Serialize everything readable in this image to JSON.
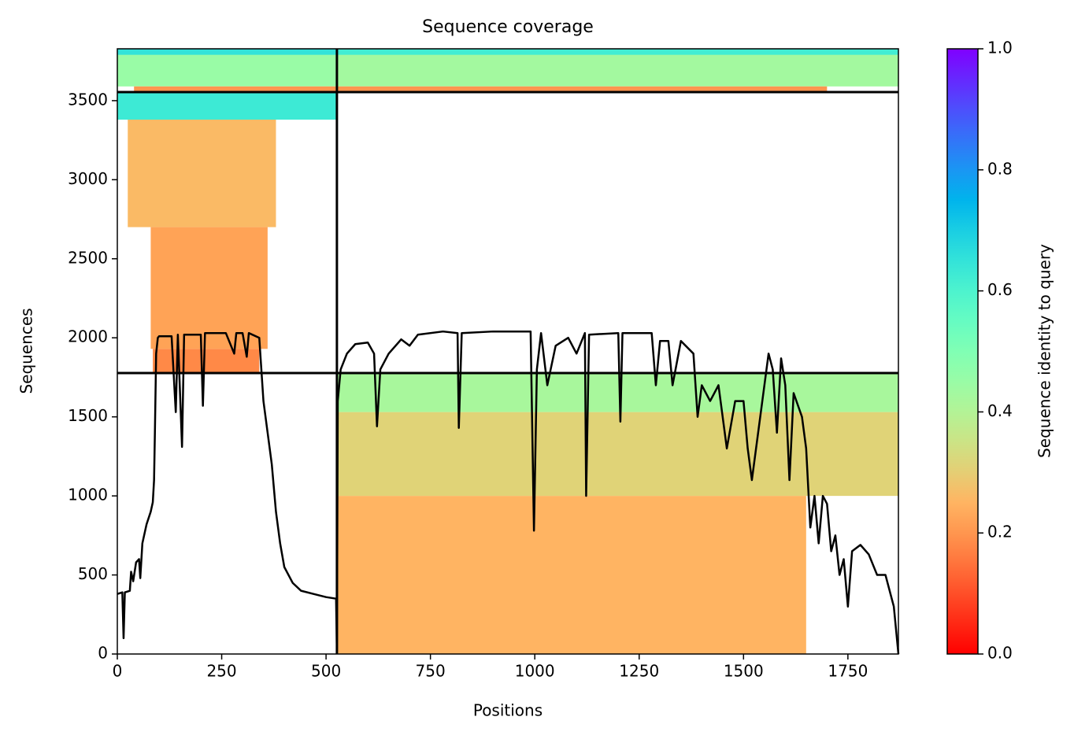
{
  "chart_data": {
    "type": "coverage",
    "title": "Sequence coverage",
    "xlabel": "Positions",
    "ylabel": "Sequences",
    "colorbar_label": "Sequence identity to query",
    "xlim": [
      0,
      1871
    ],
    "ylim": [
      0,
      3828
    ],
    "xticks": [
      0,
      250,
      500,
      750,
      1000,
      1250,
      1500,
      1750
    ],
    "yticks": [
      0,
      500,
      1000,
      1500,
      2000,
      2500,
      3000,
      3500
    ],
    "clim": [
      0,
      1
    ],
    "cticks": [
      {
        "value": 0,
        "label": "0.0"
      },
      {
        "value": 0.2,
        "label": "0.2"
      },
      {
        "value": 0.4,
        "label": "0.4"
      },
      {
        "value": 0.6,
        "label": "0.6"
      },
      {
        "value": 0.8,
        "label": "0.8"
      },
      {
        "value": 1,
        "label": "1.0"
      }
    ],
    "colormap": "rainbow_r",
    "chain_breaks": {
      "x": [
        526
      ],
      "y": [
        1777,
        3554
      ]
    },
    "blocks": [
      {
        "x0": 0,
        "x1": 526,
        "y0": 3590,
        "y1": 3828,
        "identity": 0.45
      },
      {
        "x0": 0,
        "x1": 526,
        "y0": 3790,
        "y1": 3828,
        "identity": 0.65
      },
      {
        "x0": 40,
        "x1": 526,
        "y0": 3560,
        "y1": 3590,
        "identity": 0.2
      },
      {
        "x0": 526,
        "x1": 1871,
        "y0": 3590,
        "y1": 3828,
        "identity": 0.43
      },
      {
        "x0": 526,
        "x1": 1871,
        "y0": 3790,
        "y1": 3828,
        "identity": 0.62
      },
      {
        "x0": 526,
        "x1": 1700,
        "y0": 3560,
        "y1": 3590,
        "identity": 0.2
      },
      {
        "x0": 0,
        "x1": 526,
        "y0": 3380,
        "y1": 3554,
        "identity": 0.63
      },
      {
        "x0": 25,
        "x1": 380,
        "y0": 2700,
        "y1": 3380,
        "identity": 0.26
      },
      {
        "x0": 80,
        "x1": 360,
        "y0": 1930,
        "y1": 2700,
        "identity": 0.22
      },
      {
        "x0": 85,
        "x1": 340,
        "y0": 1777,
        "y1": 1930,
        "identity": 0.18
      },
      {
        "x0": 526,
        "x1": 1871,
        "y0": 1530,
        "y1": 1777,
        "identity": 0.42
      },
      {
        "x0": 526,
        "x1": 1871,
        "y0": 1000,
        "y1": 1530,
        "identity": 0.31
      },
      {
        "x0": 526,
        "x1": 1650,
        "y0": 0,
        "y1": 1000,
        "identity": 0.25
      }
    ],
    "coverage": {
      "x": [
        0,
        12,
        15,
        18,
        30,
        33,
        38,
        45,
        52,
        55,
        60,
        70,
        80,
        85,
        88,
        90,
        93,
        97,
        100,
        130,
        140,
        145,
        155,
        160,
        200,
        205,
        210,
        260,
        280,
        285,
        300,
        310,
        315,
        340,
        350,
        360,
        370,
        380,
        390,
        400,
        420,
        440,
        470,
        500,
        524,
        526,
        528,
        535,
        550,
        570,
        600,
        615,
        622,
        630,
        650,
        680,
        700,
        720,
        780,
        815,
        818,
        825,
        900,
        990,
        998,
        1005,
        1015,
        1030,
        1050,
        1080,
        1100,
        1120,
        1123,
        1130,
        1200,
        1205,
        1210,
        1280,
        1290,
        1300,
        1320,
        1330,
        1350,
        1380,
        1390,
        1400,
        1420,
        1440,
        1460,
        1480,
        1500,
        1510,
        1520,
        1540,
        1560,
        1570,
        1580,
        1590,
        1600,
        1610,
        1620,
        1640,
        1650,
        1660,
        1670,
        1680,
        1690,
        1700,
        1710,
        1720,
        1730,
        1740,
        1750,
        1760,
        1780,
        1800,
        1820,
        1840,
        1860,
        1871
      ],
      "values": [
        380,
        390,
        100,
        390,
        400,
        520,
        460,
        580,
        600,
        480,
        700,
        820,
        900,
        960,
        1100,
        1400,
        1900,
        2000,
        2010,
        2010,
        1530,
        2020,
        1310,
        2020,
        2020,
        1570,
        2030,
        2030,
        1900,
        2030,
        2030,
        1880,
        2030,
        2000,
        1600,
        1400,
        1200,
        900,
        700,
        550,
        450,
        400,
        380,
        360,
        350,
        20,
        1600,
        1800,
        1900,
        1960,
        1970,
        1900,
        1440,
        1800,
        1900,
        1990,
        1950,
        2020,
        2040,
        2030,
        1430,
        2030,
        2040,
        2040,
        780,
        1800,
        2030,
        1700,
        1950,
        2000,
        1900,
        2030,
        1000,
        2020,
        2030,
        1470,
        2030,
        2030,
        1700,
        1980,
        1980,
        1700,
        1980,
        1900,
        1500,
        1700,
        1600,
        1700,
        1300,
        1600,
        1600,
        1300,
        1100,
        1500,
        1900,
        1800,
        1400,
        1870,
        1700,
        1100,
        1650,
        1500,
        1300,
        800,
        1000,
        700,
        1000,
        950,
        650,
        750,
        500,
        600,
        300,
        650,
        690,
        630,
        500,
        500,
        300,
        0
      ]
    }
  }
}
